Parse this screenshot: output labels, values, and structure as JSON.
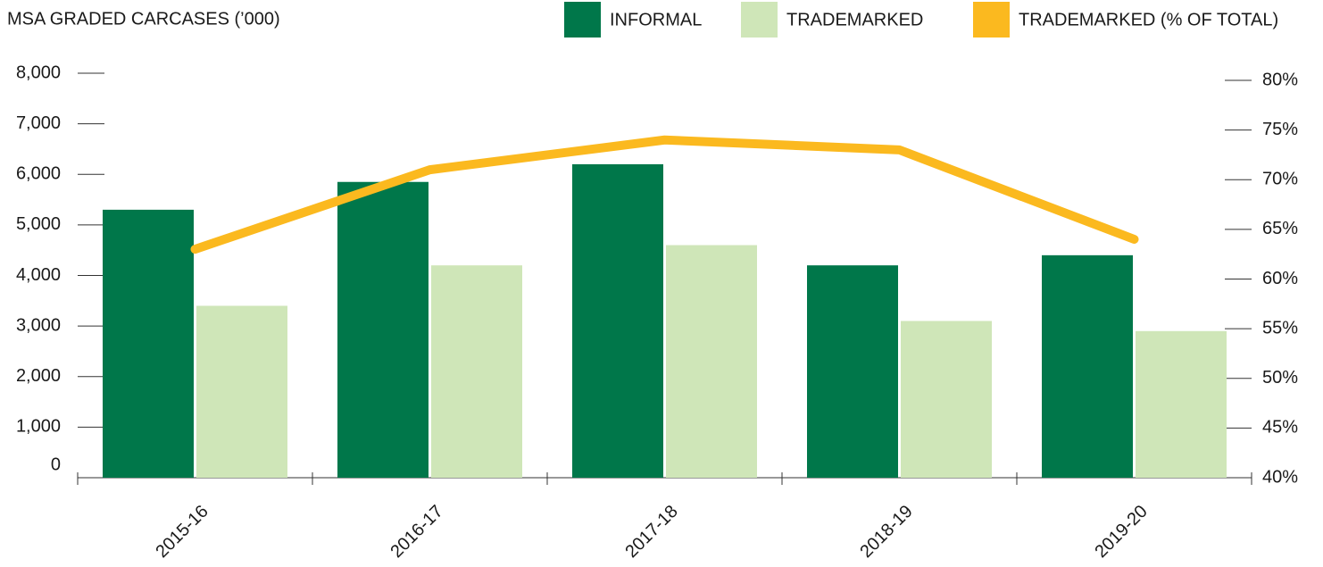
{
  "chart_data": {
    "type": "bar",
    "title": "MSA GRADED CARCASES (’000)",
    "categories": [
      "2015-16",
      "2016-17",
      "2017-18",
      "2018-19",
      "2019-20"
    ],
    "series": [
      {
        "name": "INFORMAL",
        "color": "#00774a",
        "values": [
          5300,
          5850,
          6200,
          4200,
          4400
        ]
      },
      {
        "name": "TRADEMARKED",
        "color": "#cfe6b8",
        "values": [
          3400,
          4200,
          4600,
          3100,
          2900
        ]
      },
      {
        "name": "TRADEMARKED (% OF TOTAL)",
        "color": "#fbb91f",
        "type": "line",
        "axis": "y2",
        "values": [
          63,
          71,
          74,
          73,
          64
        ]
      }
    ],
    "ylim": [
      0,
      8000
    ],
    "yticks": [
      0,
      {
        "value": 1000,
        "label": "1,000"
      },
      {
        "value": 2000,
        "label": "2,000"
      },
      {
        "value": 3000,
        "label": "3,000"
      },
      {
        "value": 4000,
        "label": "4,000"
      },
      {
        "value": 5000,
        "label": "5,000"
      },
      {
        "value": 6000,
        "label": "6,000"
      },
      {
        "value": 7000,
        "label": "7,000"
      },
      {
        "value": 8000,
        "label": "8,000"
      }
    ],
    "y2lim": [
      40,
      80
    ],
    "y2ticks": [
      {
        "value": 40,
        "label": "40%"
      },
      {
        "value": 45,
        "label": "45%"
      },
      {
        "value": 50,
        "label": "50%"
      },
      {
        "value": 55,
        "label": "55%"
      },
      {
        "value": 60,
        "label": "60%"
      },
      {
        "value": 65,
        "label": "65%"
      },
      {
        "value": 70,
        "label": "70%"
      },
      {
        "value": 75,
        "label": "75%"
      },
      {
        "value": 80,
        "label": "80%"
      }
    ],
    "legend": "top-right"
  }
}
